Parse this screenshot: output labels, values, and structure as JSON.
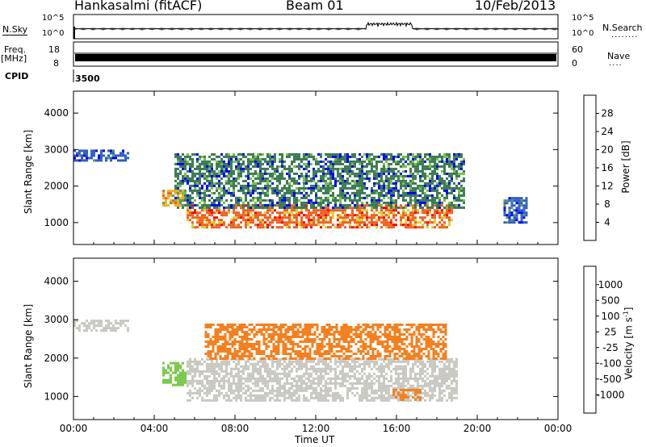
{
  "header": {
    "station": "Hankasalmi (fitACF)",
    "beam": "Beam 01",
    "date": "10/Feb/2013"
  },
  "strips": {
    "nsky_label": "N.Sky",
    "nsky_ticks": [
      "10^5",
      "10^0"
    ],
    "nsearch_label": "N.Search",
    "nsearch_ticks": [
      "10^5",
      "10^0"
    ],
    "freq_label": "Freq.",
    "freq_unit": "[MHz]",
    "freq_ticks": [
      "18",
      "8"
    ],
    "nave_label": "Nave",
    "nave_ticks": [
      "60",
      "0"
    ],
    "cpid_label": "CPID",
    "cpid_value": "3500"
  },
  "colors": {
    "power": [
      "#0000ff",
      "#1f3fd9",
      "#2f5fc0",
      "#3a7a50",
      "#5b9a60",
      "#79c04a",
      "#d7d030",
      "#f0b020",
      "#f48020",
      "#f06020",
      "#ee3020",
      "#ff0000"
    ],
    "velocity": [
      "#ff0000",
      "#ee3020",
      "#f06020",
      "#f48020",
      "#f7a030",
      "#c8c8c0",
      "#c8c8c0",
      "#7ac84a",
      "#3a9a5a",
      "#2f5fc0",
      "#1f3fd9",
      "#0000ff"
    ]
  },
  "chart_data": [
    {
      "type": "heatmap",
      "title": "",
      "xlabel": "Time UT",
      "ylabel": "Slant Range [km]",
      "xticks": [
        "00:00",
        "04:00",
        "08:00",
        "12:00",
        "16:00",
        "20:00",
        "00:00"
      ],
      "xlim_hours": [
        0,
        24
      ],
      "ylim": [
        400,
        4600
      ],
      "yticks": [
        1000,
        2000,
        3000,
        4000
      ],
      "colorbar": {
        "label": "Power [dB]",
        "ticks": [
          4,
          8,
          12,
          16,
          20,
          24,
          28
        ],
        "range": [
          0,
          32
        ]
      },
      "regions": [
        {
          "name": "near-range echo band",
          "t_start": 5.6,
          "t_end": 18.8,
          "range_min": 900,
          "range_max": 1500,
          "power_db": 26
        },
        {
          "name": "upper echo band",
          "t_start": 5.0,
          "t_end": 19.3,
          "range_min": 1400,
          "range_max": 2900,
          "power_db": 8
        },
        {
          "name": "patch 04:30-05:30",
          "t_start": 4.4,
          "t_end": 5.6,
          "range_min": 1500,
          "range_max": 1900,
          "power_db": 20
        },
        {
          "name": "far-range echoes 00:00-02:40",
          "t_start": 0.0,
          "t_end": 2.7,
          "range_min": 2700,
          "range_max": 3000,
          "power_db": 6
        },
        {
          "name": "late echoes 21:30-22:30",
          "t_start": 21.3,
          "t_end": 22.5,
          "range_min": 1000,
          "range_max": 1700,
          "power_db": 5
        }
      ]
    },
    {
      "type": "heatmap",
      "title": "",
      "xlabel": "Time UT",
      "ylabel": "Slant Range [km]",
      "xticks": [
        "00:00",
        "04:00",
        "08:00",
        "12:00",
        "16:00",
        "20:00",
        "00:00"
      ],
      "xlim_hours": [
        0,
        24
      ],
      "ylim": [
        400,
        4600
      ],
      "yticks": [
        1000,
        2000,
        3000,
        4000
      ],
      "colorbar": {
        "label": "Velocity [m s^-1]",
        "ticks": [
          1000,
          500,
          100,
          25,
          -25,
          -100,
          -500,
          -1000
        ]
      },
      "regions": [
        {
          "name": "ground scatter band",
          "t_start": 5.6,
          "t_end": 19.0,
          "range_min": 900,
          "range_max": 2000,
          "velocity_ms": 0
        },
        {
          "name": "upper echoes",
          "t_start": 6.5,
          "t_end": 18.5,
          "range_min": 2000,
          "range_max": 2900,
          "velocity_ms": -150
        },
        {
          "name": "patch near 16:30",
          "t_start": 15.8,
          "t_end": 17.2,
          "range_min": 900,
          "range_max": 1200,
          "velocity_ms": -300
        },
        {
          "name": "patch 04:30-05:30",
          "t_start": 4.4,
          "t_end": 5.6,
          "range_min": 1300,
          "range_max": 1900,
          "velocity_ms": 80
        },
        {
          "name": "far-range echoes 00:00-02:40",
          "t_start": 0.0,
          "t_end": 2.7,
          "range_min": 2700,
          "range_max": 3000,
          "velocity_ms": 0
        }
      ]
    }
  ]
}
